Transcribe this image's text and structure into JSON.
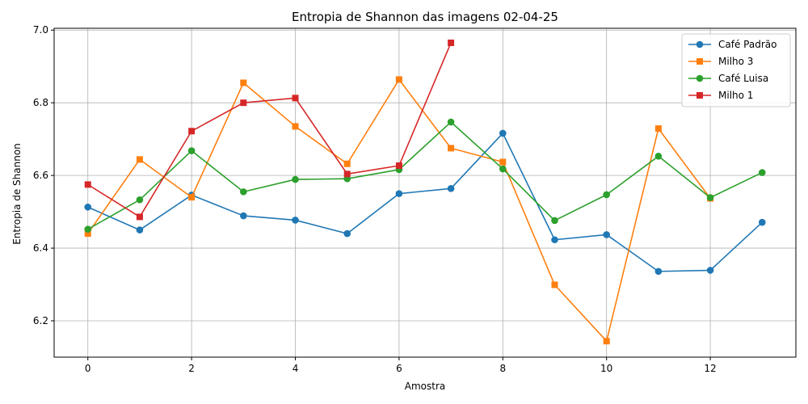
{
  "chart_data": {
    "type": "line",
    "title": "Entropia de Shannon das imagens 02-04-25",
    "xlabel": "Amostra",
    "ylabel": "Entropia de Shannon",
    "xlim": [
      -0.65,
      13.65
    ],
    "ylim": [
      6.1,
      7.005
    ],
    "xticks": [
      0,
      2,
      4,
      6,
      8,
      10,
      12
    ],
    "yticks": [
      6.2,
      6.4,
      6.6,
      6.8,
      7.0
    ],
    "grid": true,
    "legend_position": "top-right",
    "series": [
      {
        "name": "Café Padrão",
        "color": "#1f77b4",
        "marker": "circle",
        "x": [
          0,
          1,
          2,
          3,
          4,
          5,
          6,
          7,
          8,
          9,
          10,
          11,
          12,
          13
        ],
        "values": [
          6.513,
          6.45,
          6.546,
          6.489,
          6.477,
          6.44,
          6.55,
          6.564,
          6.716,
          6.423,
          6.437,
          6.336,
          6.339,
          6.471
        ]
      },
      {
        "name": "Milho 3",
        "color": "#ff7f0e",
        "marker": "square",
        "x": [
          0,
          1,
          2,
          3,
          4,
          5,
          6,
          7,
          8,
          9,
          10,
          11,
          12
        ],
        "values": [
          6.44,
          6.644,
          6.54,
          6.855,
          6.735,
          6.632,
          6.864,
          6.675,
          6.637,
          6.299,
          6.144,
          6.729,
          6.537
        ]
      },
      {
        "name": "Café Luisa",
        "color": "#2ca02c",
        "marker": "circle",
        "x": [
          0,
          1,
          2,
          3,
          4,
          5,
          6,
          7,
          8,
          9,
          10,
          11,
          12,
          13
        ],
        "values": [
          6.452,
          6.533,
          6.668,
          6.555,
          6.589,
          6.591,
          6.616,
          6.747,
          6.618,
          6.476,
          6.547,
          6.653,
          6.539,
          6.608
        ]
      },
      {
        "name": "Milho 1",
        "color": "#d62728",
        "marker": "square",
        "x": [
          0,
          1,
          2,
          3,
          4,
          5,
          6,
          7
        ],
        "values": [
          6.575,
          6.486,
          6.722,
          6.8,
          6.813,
          6.604,
          6.627,
          6.965
        ]
      }
    ]
  }
}
